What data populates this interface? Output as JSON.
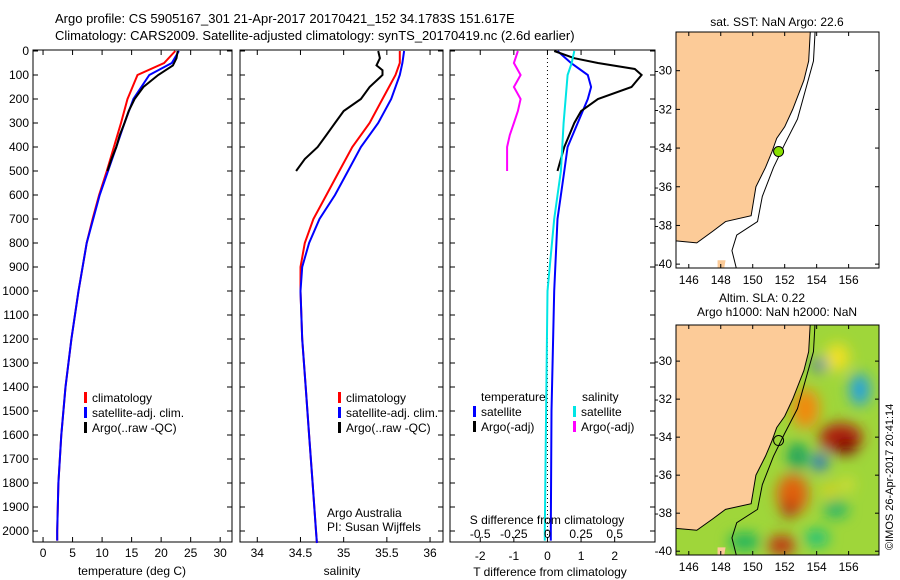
{
  "header": {
    "line1": "Argo profile: CS 5905167_301 21-Apr-2017 20170421_152 34.1783S 151.617E",
    "line2": "Climatology: CARS2009. Satellite-adjusted climatology: synTS_20170419.nc (2.6d earlier)"
  },
  "side_label": "©IMOS 26-Apr-2017 20:41:14",
  "colors": {
    "clim": "#ff0000",
    "sat": "#0000ff",
    "argo": "#000000",
    "sal_sat": "#00e5e5",
    "sal_argo": "#ff00ff",
    "land": "#fccb98"
  },
  "chart_data": [
    {
      "type": "line",
      "id": "temperature",
      "xlabel": "temperature (deg C)",
      "xlim": [
        -1.7,
        32
      ],
      "ylim": [
        2050,
        0
      ],
      "xticks": [
        0,
        5,
        10,
        15,
        20,
        25,
        30
      ],
      "yticks": [
        0,
        100,
        200,
        300,
        400,
        500,
        600,
        700,
        800,
        900,
        1000,
        1100,
        1200,
        1300,
        1400,
        1500,
        1600,
        1700,
        1800,
        1900,
        2000
      ],
      "legend": [
        "climatology",
        "satellite-adj. clim.",
        "Argo(..raw -QC)"
      ],
      "series": [
        {
          "name": "climatology",
          "color": "#ff0000",
          "depth": [
            0,
            50,
            100,
            200,
            300,
            400,
            500,
            600,
            700,
            800,
            900,
            1000,
            1200,
            1400,
            1600,
            1800,
            2000,
            2040
          ],
          "values": [
            22.4,
            20.5,
            16,
            14.3,
            13.2,
            12,
            10.8,
            9.5,
            8.4,
            7.4,
            6.7,
            6,
            4.8,
            3.8,
            3.1,
            2.6,
            2.4,
            2.4
          ]
        },
        {
          "name": "satellite-adj. clim.",
          "color": "#0000ff",
          "depth": [
            0,
            50,
            100,
            200,
            300,
            400,
            500,
            600,
            700,
            800,
            900,
            1000,
            1200,
            1400,
            1600,
            1800,
            2000,
            2040
          ],
          "values": [
            23,
            21.8,
            18,
            15.3,
            13.8,
            12.4,
            11,
            9.6,
            8.5,
            7.4,
            6.7,
            6,
            4.8,
            3.8,
            3.1,
            2.6,
            2.4,
            2.4
          ]
        },
        {
          "name": "Argo(..raw -QC)",
          "color": "#000000",
          "depth": [
            0,
            30,
            60,
            100,
            150,
            200,
            250,
            300,
            350,
            400,
            450,
            500
          ],
          "values": [
            22.8,
            22.6,
            22,
            19.5,
            17,
            15.5,
            14.5,
            13.8,
            13,
            12.4,
            11.6,
            10.9
          ]
        }
      ]
    },
    {
      "type": "line",
      "id": "salinity",
      "xlabel": "salinity",
      "xlim": [
        33.8,
        36.15
      ],
      "ylim": [
        2050,
        0
      ],
      "xticks": [
        34,
        34.5,
        35,
        35.5,
        36
      ],
      "legend": [
        "climatology",
        "satellite-adj. clim.",
        "Argo(..raw -QC)"
      ],
      "annotation": [
        "Argo Australia",
        "PI: Susan Wijffels"
      ],
      "series": [
        {
          "name": "climatology",
          "color": "#ff0000",
          "depth": [
            0,
            50,
            100,
            200,
            300,
            400,
            500,
            600,
            700,
            800,
            900,
            1000,
            1200,
            1400,
            1600,
            1800,
            2000,
            2050
          ],
          "values": [
            35.65,
            35.65,
            35.6,
            35.45,
            35.3,
            35.1,
            34.95,
            34.8,
            34.65,
            34.55,
            34.5,
            34.5,
            34.52,
            34.56,
            34.6,
            34.64,
            34.68,
            34.69
          ]
        },
        {
          "name": "satellite-adj. clim.",
          "color": "#0000ff",
          "depth": [
            0,
            50,
            100,
            200,
            300,
            400,
            500,
            600,
            700,
            800,
            900,
            1000,
            1200,
            1400,
            1600,
            1800,
            2000,
            2050
          ],
          "values": [
            35.7,
            35.68,
            35.65,
            35.55,
            35.4,
            35.2,
            35.05,
            34.9,
            34.72,
            34.6,
            34.52,
            34.5,
            34.52,
            34.56,
            34.6,
            34.64,
            34.68,
            34.69
          ]
        },
        {
          "name": "Argo(..raw -QC)",
          "color": "#000000",
          "depth": [
            0,
            30,
            60,
            80,
            100,
            150,
            200,
            250,
            300,
            350,
            400,
            450,
            500
          ],
          "values": [
            35.4,
            35.42,
            35.38,
            35.45,
            35.45,
            35.3,
            35.2,
            35.0,
            34.9,
            34.8,
            34.7,
            34.55,
            34.45
          ]
        }
      ]
    },
    {
      "type": "line",
      "id": "difference",
      "xlabel": "T difference from climatology",
      "xlabel2": "S difference from climatology",
      "xlim": [
        -2.9,
        3.2
      ],
      "ylim": [
        2050,
        0
      ],
      "xticks": [
        -2,
        -1,
        0,
        1,
        2
      ],
      "xticks_s": [
        -0.5,
        -0.25,
        0,
        0.25,
        0.5
      ],
      "legend": {
        "temperature_title": "temperature",
        "salinity_title": "salinity",
        "t_sat": "satellite",
        "t_argo": "Argo(-adj)",
        "s_sat": "satellite",
        "s_argo": "Argo(-adj)"
      },
      "series": [
        {
          "name": "T satellite",
          "color": "#0000ff",
          "unit": "T",
          "depth": [
            0,
            50,
            100,
            150,
            200,
            300,
            400,
            500,
            700,
            1000,
            1500,
            2000,
            2040
          ],
          "values": [
            0.3,
            0.7,
            1.2,
            1.3,
            1.2,
            0.9,
            0.6,
            0.5,
            0.3,
            0.2,
            0.12,
            0.1,
            0.1
          ]
        },
        {
          "name": "T Argo(-adj)",
          "color": "#000000",
          "unit": "T",
          "depth": [
            0,
            30,
            50,
            75,
            100,
            150,
            200,
            250,
            300,
            400,
            450,
            500
          ],
          "values": [
            0.2,
            0.8,
            1.5,
            2.6,
            2.8,
            2.5,
            1.5,
            1.0,
            0.8,
            0.5,
            0.4,
            0.3
          ]
        },
        {
          "name": "S satellite",
          "color": "#00e5e5",
          "unit": "S",
          "depth": [
            0,
            50,
            100,
            300,
            500,
            700,
            1000,
            1500,
            2000,
            2040
          ],
          "values": [
            0.2,
            0.18,
            0.15,
            0.12,
            0.1,
            0.05,
            0.0,
            -0.01,
            -0.02,
            -0.02
          ]
        },
        {
          "name": "S Argo(-adj)",
          "color": "#ff00ff",
          "unit": "S",
          "depth": [
            0,
            50,
            100,
            150,
            200,
            250,
            300,
            350,
            400,
            450,
            500
          ],
          "values": [
            -0.22,
            -0.25,
            -0.2,
            -0.25,
            -0.2,
            -0.22,
            -0.25,
            -0.28,
            -0.3,
            -0.3,
            -0.3
          ]
        }
      ]
    },
    {
      "type": "map",
      "id": "sst-map",
      "title": "sat. SST: NaN Argo: 22.6",
      "lonlim": [
        145.2,
        157.9
      ],
      "latlim": [
        -40.2,
        -28.0
      ],
      "lonticks": [
        146,
        148,
        150,
        152,
        154,
        156
      ],
      "latticks": [
        -30,
        -32,
        -34,
        -36,
        -38,
        -40
      ],
      "argo_position": [
        151.617,
        -34.178
      ]
    },
    {
      "type": "heatmap",
      "id": "sla-map",
      "title": [
        "Altim. SLA: 0.22",
        "Argo h1000: NaN h2000: NaN"
      ],
      "lonlim": [
        145.2,
        157.9
      ],
      "latlim": [
        -40.2,
        -28.1
      ],
      "lonticks": [
        146,
        148,
        150,
        152,
        154,
        156
      ],
      "latticks": [
        -30,
        -32,
        -34,
        -36,
        -38,
        -40
      ],
      "argo_position": [
        151.617,
        -34.178
      ]
    }
  ]
}
